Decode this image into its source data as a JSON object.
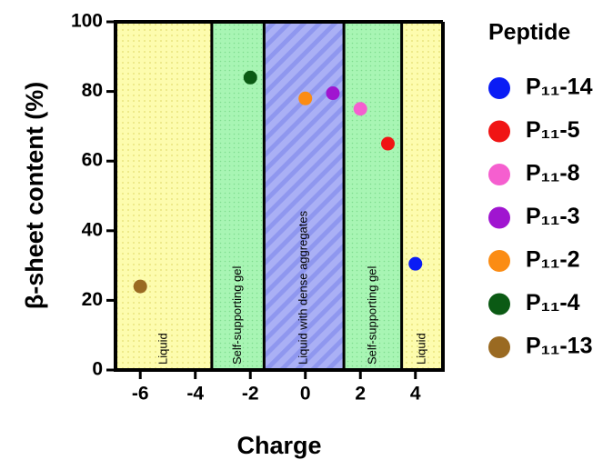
{
  "chart_data": {
    "type": "scatter",
    "x_label": "Charge",
    "y_label": "β-sheet content (%)",
    "legend_title": "Peptide",
    "xlim": [
      -6.9,
      5
    ],
    "xticks": [
      -6,
      -4,
      -2,
      0,
      2,
      4
    ],
    "ylim": [
      0,
      100
    ],
    "yticks": [
      0,
      20,
      40,
      60,
      80,
      100
    ],
    "regions": [
      {
        "label": "Liquid",
        "from": -6.9,
        "to": -3.4,
        "color": "#fdfcae"
      },
      {
        "label": "Self-supporting gel",
        "from": -3.4,
        "to": -1.5,
        "color": "#a8f5b4"
      },
      {
        "label": "Liquid with dense aggregates",
        "from": -1.5,
        "to": 1.4,
        "color": "#aab0f5"
      },
      {
        "label": "Self-supporting gel",
        "from": 1.4,
        "to": 3.5,
        "color": "#a8f5b4"
      },
      {
        "label": "Liquid",
        "from": 3.5,
        "to": 5,
        "color": "#fdfcae"
      }
    ],
    "series": [
      {
        "name": "P₁₁-14",
        "color": "#0a1cf5",
        "x": [
          4
        ],
        "values": [
          30.5
        ]
      },
      {
        "name": "P₁₁-5",
        "color": "#f01414",
        "x": [
          3
        ],
        "values": [
          65
        ]
      },
      {
        "name": "P₁₁-8",
        "color": "#f55fcf",
        "x": [
          2
        ],
        "values": [
          75
        ]
      },
      {
        "name": "P₁₁-3",
        "color": "#a015d0",
        "x": [
          1
        ],
        "values": [
          79.5
        ]
      },
      {
        "name": "P₁₁-2",
        "color": "#fb8c14",
        "x": [
          0
        ],
        "values": [
          78
        ]
      },
      {
        "name": "P₁₁-4",
        "color": "#0b5a14",
        "x": [
          -2
        ],
        "values": [
          84
        ]
      },
      {
        "name": "P₁₁-13",
        "color": "#9a6a22",
        "x": [
          -6
        ],
        "values": [
          24
        ]
      }
    ]
  }
}
